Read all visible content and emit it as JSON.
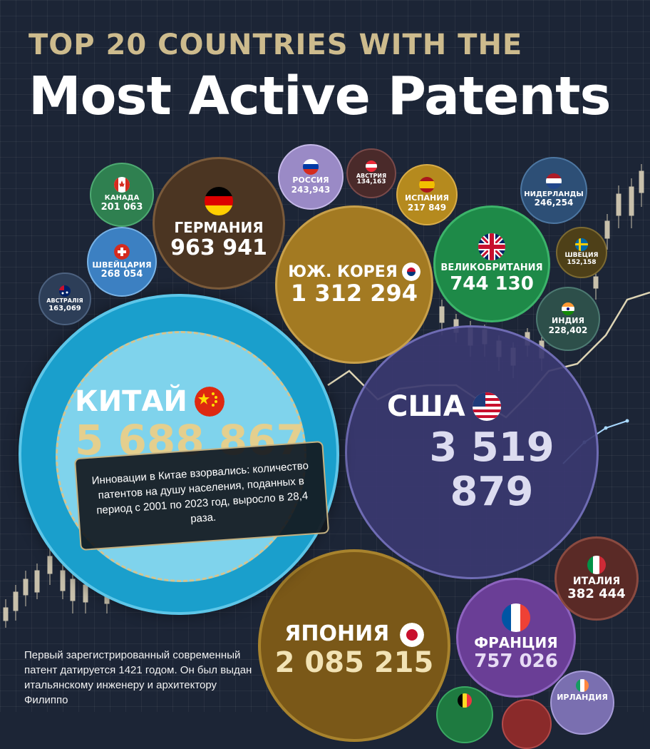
{
  "header": {
    "top_line": "TOP 20 COUNTRIES WITH THE",
    "main_title": "Most Active Patents"
  },
  "countries": {
    "china": {
      "name": "КИТАЙ",
      "value": "5 688 867",
      "color": "#1e9ec8"
    },
    "usa": {
      "name": "США",
      "value": "3 519 879",
      "color": "#3d3c73"
    },
    "japan": {
      "name": "ЯПОНИЯ",
      "value": "2 085 215",
      "color": "#7b5a18"
    },
    "south_korea": {
      "name": "ЮЖ. КОРЕЯ",
      "value": "1 312 294",
      "color": "#a47a20"
    },
    "germany": {
      "name": "ГЕРМАНИЯ",
      "value": "963 941",
      "color": "#4a3522"
    },
    "france": {
      "name": "ФРАНЦИЯ",
      "value": "757 026",
      "color": "#6b3f97"
    },
    "uk": {
      "name": "ВЕЛИКОБРИТАНИЯ",
      "value": "744 130",
      "color": "#1e8a48"
    },
    "italy": {
      "name": "ИТАЛИЯ",
      "value": "382 444",
      "color": "#5a2a26"
    },
    "switzerland": {
      "name": "ШВЕЙЦАРИЯ",
      "value": "268 054",
      "color": "#3c7fc0"
    },
    "netherlands": {
      "name": "НИДЕРЛАНДЫ",
      "value": "246,254",
      "color": "#2d4f76"
    },
    "russia": {
      "name": "РОССИЯ",
      "value": "243,943",
      "color": "#9a8ac6"
    },
    "india": {
      "name": "ИНДИЯ",
      "value": "228,402",
      "color": "#2d4f4a"
    },
    "spain": {
      "name": "ИСПАНИЯ",
      "value": "217 849",
      "color": "#b58a1e"
    },
    "canada": {
      "name": "КАНАДА",
      "value": "201 063",
      "color": "#2f8050"
    },
    "australia": {
      "name": "АВСТРАЛІЯ",
      "value": "163,069",
      "color": "#2d3e58"
    },
    "sweden": {
      "name": "ШВЕЦИЯ",
      "value": "152,158",
      "color": "#4e4018"
    },
    "austria": {
      "name": "АВСТРИЯ",
      "value": "134,163",
      "color": "#4a2a2a"
    },
    "ireland": {
      "name": "ИРЛАНДИЯ",
      "value": "",
      "color": "#7a6fb0"
    }
  },
  "china_note": "Инновации в Китае взорвались: количество патентов на душу населения, поданных в период с 2001 по 2023 год, выросло в 28,4 раза.",
  "footnote": "Первый зарегистрированный современный патент датируется 1421 годом. Он был выдан итальянскому инженеру и архитектору Филиппо"
}
